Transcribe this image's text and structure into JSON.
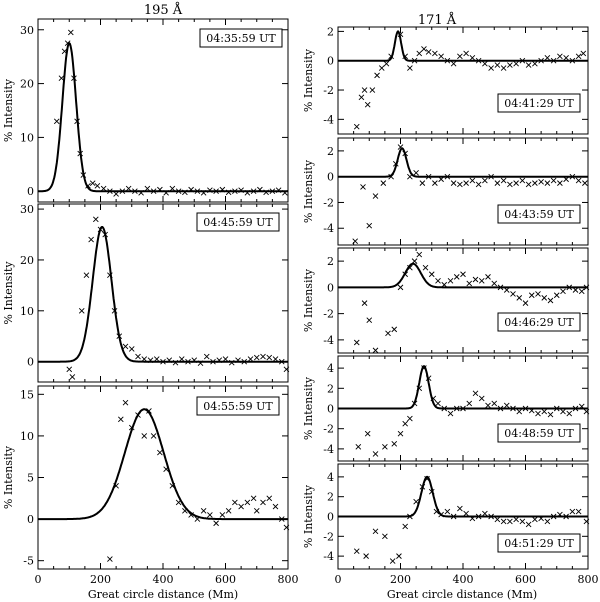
{
  "figure": {
    "column_titles": [
      "195 Å",
      "171 Å"
    ],
    "xlabel": "Great circle distance (Mm)",
    "ylabel": "% Intensity"
  },
  "chart_data": [
    {
      "type": "scatter+line",
      "column": "195 Å",
      "timestamp": "04:35:59 UT",
      "xlim": [
        0,
        800
      ],
      "ylim": [
        -2,
        32
      ],
      "yticks": [
        0,
        10,
        20,
        30
      ],
      "xticks": [
        0,
        200,
        400,
        600,
        800
      ],
      "fit": {
        "amp": 27.5,
        "center": 100,
        "sigma": 22
      },
      "points": [
        [
          60,
          13
        ],
        [
          75,
          21
        ],
        [
          85,
          26
        ],
        [
          95,
          27.5
        ],
        [
          105,
          29.5
        ],
        [
          115,
          21
        ],
        [
          125,
          13
        ],
        [
          135,
          7
        ],
        [
          145,
          3
        ],
        [
          160,
          1
        ],
        [
          175,
          1.5
        ],
        [
          190,
          1
        ],
        [
          210,
          0.5
        ],
        [
          230,
          0
        ],
        [
          250,
          -0.5
        ],
        [
          270,
          0
        ],
        [
          290,
          0.5
        ],
        [
          310,
          0
        ],
        [
          330,
          -0.3
        ],
        [
          350,
          0.5
        ],
        [
          370,
          0
        ],
        [
          390,
          0.3
        ],
        [
          410,
          -0.3
        ],
        [
          430,
          0.5
        ],
        [
          450,
          0
        ],
        [
          470,
          -0.2
        ],
        [
          490,
          0.3
        ],
        [
          510,
          0
        ],
        [
          530,
          -0.3
        ],
        [
          550,
          0.2
        ],
        [
          570,
          0
        ],
        [
          590,
          0.3
        ],
        [
          610,
          -0.2
        ],
        [
          630,
          0
        ],
        [
          650,
          0.2
        ],
        [
          670,
          -0.3
        ],
        [
          690,
          0
        ],
        [
          710,
          0.3
        ],
        [
          730,
          -0.2
        ],
        [
          750,
          0
        ],
        [
          770,
          0.2
        ],
        [
          790,
          -0.3
        ]
      ]
    },
    {
      "type": "scatter+line",
      "column": "195 Å",
      "timestamp": "04:45:59 UT",
      "xlim": [
        0,
        800
      ],
      "ylim": [
        -4,
        31
      ],
      "yticks": [
        0,
        10,
        20,
        30
      ],
      "xticks": [
        0,
        200,
        400,
        600,
        800
      ],
      "fit": {
        "amp": 26.5,
        "center": 205,
        "sigma": 30
      },
      "points": [
        [
          100,
          -1.5
        ],
        [
          110,
          -3
        ],
        [
          140,
          10
        ],
        [
          155,
          17
        ],
        [
          170,
          24
        ],
        [
          185,
          28
        ],
        [
          200,
          26
        ],
        [
          215,
          25
        ],
        [
          230,
          17
        ],
        [
          245,
          10
        ],
        [
          260,
          5
        ],
        [
          280,
          3
        ],
        [
          300,
          2.5
        ],
        [
          320,
          1
        ],
        [
          340,
          0.5
        ],
        [
          360,
          0.3
        ],
        [
          380,
          0.5
        ],
        [
          400,
          0
        ],
        [
          420,
          0.3
        ],
        [
          440,
          -0.2
        ],
        [
          460,
          0.5
        ],
        [
          480,
          0
        ],
        [
          500,
          0.3
        ],
        [
          520,
          -0.3
        ],
        [
          540,
          1
        ],
        [
          560,
          0
        ],
        [
          580,
          0.3
        ],
        [
          600,
          0.5
        ],
        [
          620,
          -0.2
        ],
        [
          640,
          0.3
        ],
        [
          660,
          0
        ],
        [
          680,
          0.5
        ],
        [
          700,
          0.8
        ],
        [
          720,
          1
        ],
        [
          740,
          0.8
        ],
        [
          760,
          0.5
        ],
        [
          780,
          0
        ],
        [
          795,
          -1.5
        ]
      ]
    },
    {
      "type": "scatter+line",
      "column": "195 Å",
      "timestamp": "04:55:59 UT",
      "xlim": [
        0,
        800
      ],
      "ylim": [
        -6,
        16
      ],
      "yticks": [
        -5,
        0,
        5,
        10,
        15
      ],
      "xticks": [
        0,
        200,
        400,
        600,
        800
      ],
      "fit": {
        "amp": 13.2,
        "center": 340,
        "sigma": 62
      },
      "points": [
        [
          230,
          -4.8
        ],
        [
          250,
          4
        ],
        [
          265,
          12
        ],
        [
          280,
          14
        ],
        [
          300,
          11
        ],
        [
          320,
          12.5
        ],
        [
          340,
          10
        ],
        [
          355,
          13
        ],
        [
          370,
          10
        ],
        [
          390,
          8
        ],
        [
          410,
          6
        ],
        [
          430,
          4
        ],
        [
          450,
          2
        ],
        [
          470,
          1
        ],
        [
          490,
          0.5
        ],
        [
          510,
          0
        ],
        [
          530,
          1
        ],
        [
          550,
          0.5
        ],
        [
          570,
          -0.5
        ],
        [
          590,
          0.5
        ],
        [
          610,
          1
        ],
        [
          630,
          2
        ],
        [
          650,
          1.5
        ],
        [
          670,
          2
        ],
        [
          690,
          2.5
        ],
        [
          700,
          1
        ],
        [
          720,
          2
        ],
        [
          740,
          2.5
        ],
        [
          760,
          1.5
        ],
        [
          780,
          0
        ],
        [
          795,
          -1
        ]
      ]
    },
    {
      "type": "scatter+line",
      "column": "171 Å",
      "timestamp": "04:41:29 UT",
      "xlim": [
        0,
        800
      ],
      "ylim": [
        -5,
        2.3
      ],
      "yticks": [
        -4,
        -2,
        0,
        2
      ],
      "xticks": [
        0,
        200,
        400,
        600,
        800
      ],
      "fit": {
        "amp": 2.0,
        "center": 192,
        "sigma": 10
      },
      "points": [
        [
          60,
          -4.5
        ],
        [
          75,
          -2.5
        ],
        [
          85,
          -2
        ],
        [
          95,
          -3
        ],
        [
          110,
          -2
        ],
        [
          125,
          -1
        ],
        [
          140,
          -0.5
        ],
        [
          155,
          -0.2
        ],
        [
          170,
          0.3
        ],
        [
          200,
          1.8
        ],
        [
          215,
          0.3
        ],
        [
          230,
          -0.5
        ],
        [
          245,
          0
        ],
        [
          260,
          0.5
        ],
        [
          275,
          0.8
        ],
        [
          290,
          0.6
        ],
        [
          310,
          0.5
        ],
        [
          330,
          0.3
        ],
        [
          350,
          0
        ],
        [
          370,
          -0.2
        ],
        [
          390,
          0.3
        ],
        [
          410,
          0.5
        ],
        [
          430,
          0.2
        ],
        [
          450,
          0
        ],
        [
          470,
          -0.2
        ],
        [
          490,
          -0.5
        ],
        [
          510,
          -0.3
        ],
        [
          530,
          -0.5
        ],
        [
          550,
          -0.3
        ],
        [
          570,
          -0.2
        ],
        [
          590,
          0
        ],
        [
          610,
          -0.3
        ],
        [
          630,
          -0.2
        ],
        [
          650,
          0
        ],
        [
          670,
          0.2
        ],
        [
          690,
          0
        ],
        [
          710,
          0.3
        ],
        [
          730,
          0.2
        ],
        [
          750,
          0
        ],
        [
          770,
          0.3
        ],
        [
          785,
          0.5
        ]
      ]
    },
    {
      "type": "scatter+line",
      "column": "171 Å",
      "timestamp": "04:43:59 UT",
      "xlim": [
        0,
        800
      ],
      "ylim": [
        -5.3,
        3
      ],
      "yticks": [
        -4,
        -2,
        0,
        2
      ],
      "xticks": [
        0,
        200,
        400,
        600,
        800
      ],
      "fit": {
        "amp": 2.2,
        "center": 205,
        "sigma": 14
      },
      "points": [
        [
          55,
          -5
        ],
        [
          80,
          -0.8
        ],
        [
          100,
          -3.8
        ],
        [
          120,
          -1.5
        ],
        [
          145,
          -0.5
        ],
        [
          170,
          0
        ],
        [
          185,
          1
        ],
        [
          200,
          2.3
        ],
        [
          215,
          1.8
        ],
        [
          230,
          0
        ],
        [
          250,
          0.3
        ],
        [
          270,
          -0.5
        ],
        [
          290,
          0
        ],
        [
          310,
          -0.5
        ],
        [
          330,
          -0.2
        ],
        [
          350,
          0
        ],
        [
          370,
          -0.5
        ],
        [
          390,
          -0.6
        ],
        [
          410,
          -0.5
        ],
        [
          430,
          -0.3
        ],
        [
          450,
          -0.6
        ],
        [
          470,
          -0.3
        ],
        [
          490,
          0
        ],
        [
          510,
          -0.5
        ],
        [
          530,
          -0.3
        ],
        [
          550,
          -0.6
        ],
        [
          570,
          -0.5
        ],
        [
          590,
          -0.3
        ],
        [
          610,
          -0.6
        ],
        [
          630,
          -0.5
        ],
        [
          650,
          -0.4
        ],
        [
          670,
          -0.5
        ],
        [
          690,
          -0.3
        ],
        [
          710,
          -0.5
        ],
        [
          730,
          -0.2
        ],
        [
          750,
          0
        ],
        [
          770,
          -0.3
        ],
        [
          790,
          -0.5
        ]
      ]
    },
    {
      "type": "scatter+line",
      "column": "171 Å",
      "timestamp": "04:46:29 UT",
      "xlim": [
        0,
        800
      ],
      "ylim": [
        -5,
        3
      ],
      "yticks": [
        -4,
        -2,
        0,
        2
      ],
      "xticks": [
        0,
        200,
        400,
        600,
        800
      ],
      "fit": {
        "amp": 1.8,
        "center": 240,
        "sigma": 25
      },
      "points": [
        [
          60,
          -4.2
        ],
        [
          85,
          -1.2
        ],
        [
          100,
          -2.5
        ],
        [
          120,
          -4.8
        ],
        [
          160,
          -3.5
        ],
        [
          180,
          -3.2
        ],
        [
          200,
          0
        ],
        [
          215,
          1
        ],
        [
          230,
          1.5
        ],
        [
          245,
          2
        ],
        [
          260,
          2.5
        ],
        [
          280,
          1.5
        ],
        [
          300,
          1
        ],
        [
          320,
          0.5
        ],
        [
          340,
          0.2
        ],
        [
          360,
          0.5
        ],
        [
          380,
          0.8
        ],
        [
          400,
          1
        ],
        [
          420,
          0.3
        ],
        [
          440,
          0.6
        ],
        [
          460,
          0.5
        ],
        [
          480,
          0.8
        ],
        [
          500,
          0.3
        ],
        [
          520,
          0
        ],
        [
          540,
          -0.2
        ],
        [
          560,
          -0.5
        ],
        [
          580,
          -0.8
        ],
        [
          600,
          -1.2
        ],
        [
          620,
          -0.6
        ],
        [
          640,
          -0.5
        ],
        [
          660,
          -0.8
        ],
        [
          680,
          -1
        ],
        [
          700,
          -0.6
        ],
        [
          720,
          -0.3
        ],
        [
          740,
          0
        ],
        [
          760,
          -0.2
        ],
        [
          780,
          -0.3
        ],
        [
          795,
          0
        ]
      ]
    },
    {
      "type": "scatter+line",
      "column": "171 Å",
      "timestamp": "04:48:59 UT",
      "xlim": [
        0,
        800
      ],
      "ylim": [
        -5.2,
        5.2
      ],
      "yticks": [
        -4,
        -2,
        0,
        2,
        4
      ],
      "xticks": [
        0,
        200,
        400,
        600,
        800
      ],
      "fit": {
        "amp": 4.2,
        "center": 275,
        "sigma": 15
      },
      "points": [
        [
          65,
          -3.8
        ],
        [
          95,
          -2.5
        ],
        [
          120,
          -4.5
        ],
        [
          150,
          -3.8
        ],
        [
          180,
          -3.5
        ],
        [
          200,
          -2.5
        ],
        [
          215,
          -1.5
        ],
        [
          230,
          -1
        ],
        [
          245,
          0.5
        ],
        [
          260,
          2
        ],
        [
          275,
          4
        ],
        [
          290,
          3
        ],
        [
          305,
          1
        ],
        [
          320,
          0.5
        ],
        [
          340,
          0
        ],
        [
          360,
          -0.5
        ],
        [
          380,
          0
        ],
        [
          400,
          0
        ],
        [
          420,
          0.5
        ],
        [
          440,
          1.5
        ],
        [
          460,
          1
        ],
        [
          480,
          0.3
        ],
        [
          500,
          0.5
        ],
        [
          520,
          0
        ],
        [
          540,
          0.3
        ],
        [
          560,
          0
        ],
        [
          580,
          -0.3
        ],
        [
          600,
          0
        ],
        [
          620,
          -0.2
        ],
        [
          640,
          -0.5
        ],
        [
          660,
          -0.3
        ],
        [
          680,
          -0.6
        ],
        [
          700,
          0
        ],
        [
          720,
          -0.3
        ],
        [
          740,
          -0.5
        ],
        [
          760,
          0
        ],
        [
          780,
          0.2
        ],
        [
          795,
          -0.3
        ]
      ]
    },
    {
      "type": "scatter+line",
      "column": "171 Å",
      "timestamp": "04:51:29 UT",
      "xlim": [
        0,
        800
      ],
      "ylim": [
        -5.3,
        5.3
      ],
      "yticks": [
        -4,
        -2,
        0,
        2,
        4
      ],
      "xticks": [
        0,
        200,
        400,
        600,
        800
      ],
      "fit": {
        "amp": 4.0,
        "center": 285,
        "sigma": 18
      },
      "points": [
        [
          60,
          -3.5
        ],
        [
          90,
          -4
        ],
        [
          120,
          -1.5
        ],
        [
          150,
          -2
        ],
        [
          175,
          -4.5
        ],
        [
          195,
          -4
        ],
        [
          215,
          -1
        ],
        [
          230,
          0
        ],
        [
          250,
          1.5
        ],
        [
          270,
          3
        ],
        [
          285,
          3.8
        ],
        [
          300,
          2.5
        ],
        [
          315,
          0.5
        ],
        [
          330,
          0.2
        ],
        [
          350,
          0.5
        ],
        [
          370,
          0
        ],
        [
          390,
          0.8
        ],
        [
          410,
          0.3
        ],
        [
          430,
          -0.2
        ],
        [
          450,
          0
        ],
        [
          470,
          0.3
        ],
        [
          490,
          0
        ],
        [
          510,
          -0.3
        ],
        [
          530,
          -0.5
        ],
        [
          550,
          -0.5
        ],
        [
          570,
          -0.3
        ],
        [
          590,
          -0.5
        ],
        [
          610,
          -0.8
        ],
        [
          630,
          -0.3
        ],
        [
          650,
          -0.2
        ],
        [
          670,
          -0.5
        ],
        [
          690,
          0
        ],
        [
          710,
          0.2
        ],
        [
          730,
          0
        ],
        [
          750,
          0.5
        ],
        [
          770,
          0.5
        ],
        [
          795,
          -0.5
        ]
      ]
    }
  ]
}
